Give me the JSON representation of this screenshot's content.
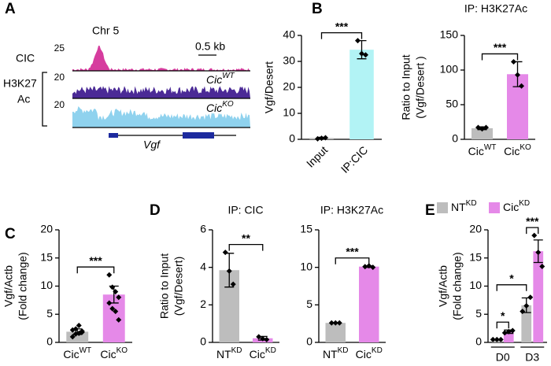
{
  "panel_a": {
    "letter": "A",
    "chromosome": "Chr 5",
    "scale_bar": "0.5 kb",
    "tracks": [
      {
        "name": "CIC",
        "max": 25
      },
      {
        "name": {
          "text": "Cic",
          "sup": "WT"
        },
        "max": 20
      },
      {
        "name": {
          "text": "Cic",
          "sup": "KO"
        },
        "max": 20
      }
    ],
    "group_label": [
      "H3K27",
      "Ac"
    ],
    "gene": "Vgf"
  },
  "chart_data": [
    {
      "type": "bar",
      "panel": "B",
      "ylabel": [
        "Vgf/Desert"
      ],
      "categories": [
        "Input",
        "IP:CIC"
      ],
      "values": [
        0.5,
        34.5
      ],
      "errors": [
        0.3,
        3.5
      ],
      "points": [
        [
          0.2,
          0.4,
          0.6
        ],
        [
          38,
          33,
          32.5
        ]
      ],
      "colors": [
        "#bdbdbd",
        "#b2f3f5"
      ],
      "ylim": [
        0,
        40
      ],
      "yticks": [
        0,
        10,
        20,
        30,
        40
      ],
      "significance": [
        "***"
      ]
    },
    {
      "type": "bar",
      "title": "IP: H3K27Ac",
      "ylabel": [
        "Ratio to Input",
        "(Vgf/Desert )"
      ],
      "categories": [
        {
          "text": "Cic",
          "sup": "WT"
        },
        {
          "text": "Cic",
          "sup": "KO"
        }
      ],
      "values": [
        16,
        94
      ],
      "errors": [
        2,
        18
      ],
      "points": [
        [
          17,
          15,
          17
        ],
        [
          112,
          93,
          77
        ]
      ],
      "colors": [
        "#bdbdbd",
        "#e589e8"
      ],
      "ylim": [
        0,
        150
      ],
      "yticks": [
        0,
        50,
        100,
        150
      ],
      "significance": [
        "***"
      ]
    },
    {
      "type": "bar",
      "panel": "C",
      "ylabel": [
        "Vgf/Actb",
        "(Fold change)"
      ],
      "categories": [
        {
          "text": "Cic",
          "sup": "WT"
        },
        {
          "text": "Cic",
          "sup": "KO"
        }
      ],
      "values": [
        1.9,
        8.5
      ],
      "errors": [
        0.5,
        1.5
      ],
      "points": [
        [
          1,
          1.5,
          1.6,
          2,
          2.2,
          2.4,
          3,
          1.8
        ],
        [
          12,
          9.8,
          9,
          8,
          7,
          6,
          5.5,
          4
        ]
      ],
      "colors": [
        "#bdbdbd",
        "#e589e8"
      ],
      "ylim": [
        0,
        20
      ],
      "yticks": [
        0,
        5,
        10,
        15,
        20
      ],
      "significance": [
        "***"
      ]
    },
    {
      "type": "bar",
      "panel": "D",
      "title": "IP: CIC",
      "ylabel": [
        "Ratio to Input",
        "(Vgf/Desert)"
      ],
      "categories": [
        {
          "text": "NT",
          "sup": "KD"
        },
        {
          "text": "Cic",
          "sup": "KD"
        }
      ],
      "values": [
        3.85,
        0.22
      ],
      "errors": [
        0.9,
        0.1
      ],
      "points": [
        [
          4.8,
          3.8,
          3.1
        ],
        [
          0.3,
          0.2,
          0.15
        ]
      ],
      "colors": [
        "#bdbdbd",
        "#e589e8"
      ],
      "ylim": [
        0,
        6
      ],
      "yticks": [
        0,
        2,
        4,
        6
      ],
      "significance": [
        "**"
      ]
    },
    {
      "type": "bar",
      "title": "IP: H3K27Ac",
      "categories": [
        {
          "text": "NT",
          "sup": "KD"
        },
        {
          "text": "Cic",
          "sup": "KD"
        }
      ],
      "values": [
        2.6,
        10.1
      ],
      "errors": [
        0.05,
        0.1
      ],
      "points": [
        [
          2.6,
          2.6,
          2.6
        ],
        [
          10.1,
          10.2,
          10.0
        ]
      ],
      "colors": [
        "#bdbdbd",
        "#e589e8"
      ],
      "ylim": [
        0,
        15
      ],
      "yticks": [
        0,
        5,
        10,
        15
      ],
      "significance": [
        "***"
      ]
    },
    {
      "type": "grouped-bar",
      "panel": "E",
      "ylabel": [
        "Vgf/Actb",
        "(Fold change)"
      ],
      "categories": [
        "D0",
        "D3"
      ],
      "series": [
        {
          "name": {
            "text": "NT",
            "sup": "KD"
          },
          "color": "#bdbdbd",
          "values": [
            0.5,
            6.6
          ],
          "errors": [
            0.05,
            1.3
          ],
          "points": [
            [
              0.5,
              0.5,
              0.5
            ],
            [
              5.5,
              6.5,
              8
            ]
          ]
        },
        {
          "name": {
            "text": "Cic",
            "sup": "KD"
          },
          "color": "#e589e8",
          "values": [
            1.9,
            16.2
          ],
          "errors": [
            0.3,
            2
          ],
          "points": [
            [
              1.7,
              1.9,
              2.1
            ],
            [
              19,
              16,
              13.5
            ]
          ]
        }
      ],
      "ylim": [
        0,
        20
      ],
      "yticks": [
        0,
        5,
        10,
        15,
        20
      ],
      "significance": [
        "*",
        "***",
        "*"
      ]
    }
  ]
}
